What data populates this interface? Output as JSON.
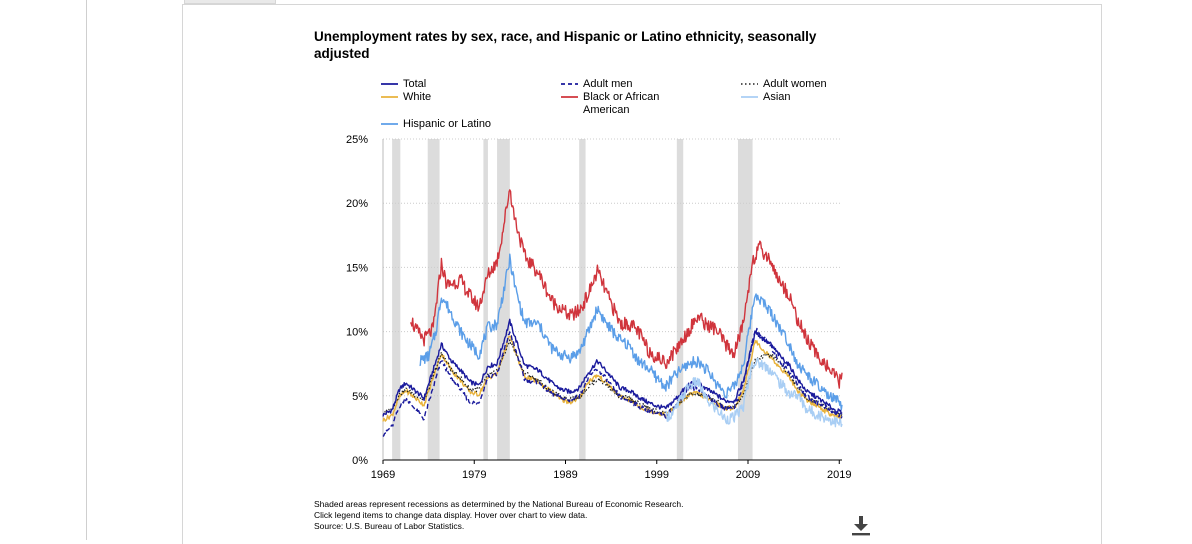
{
  "chart_data": {
    "type": "line",
    "title": "Unemployment rates by sex, race, and Hispanic or Latino ethnicity, seasonally adjusted",
    "xlabel": "",
    "ylabel": "",
    "xlim": [
      1969,
      2019.3
    ],
    "ylim": [
      0,
      25
    ],
    "x_ticks": [
      "1969",
      "1979",
      "1989",
      "1999",
      "2009",
      "2019"
    ],
    "y_ticks": [
      "0%",
      "5%",
      "10%",
      "15%",
      "20%",
      "25%"
    ],
    "grid": "horizontal dotted",
    "legend_position": "top",
    "recessions": [
      [
        1970.0,
        1970.9
      ],
      [
        1973.9,
        1975.2
      ],
      [
        1980.0,
        1980.5
      ],
      [
        1981.5,
        1982.9
      ],
      [
        1990.5,
        1991.2
      ],
      [
        2001.2,
        2001.9
      ],
      [
        2007.9,
        2009.5
      ]
    ],
    "series": [
      {
        "name": "Total",
        "color": "#1a1a9c",
        "dash": "solid",
        "x": [
          1969,
          1970,
          1970.8,
          1971.5,
          1973.5,
          1975.4,
          1976.5,
          1977.5,
          1978.5,
          1979.5,
          1980.5,
          1981.5,
          1982.9,
          1983.5,
          1984.5,
          1986,
          1987.5,
          1988.5,
          1989.5,
          1990.5,
          1991.5,
          1992.5,
          1993.5,
          1995,
          1996,
          1997,
          1998,
          1999,
          2000,
          2001,
          2002.5,
          2003.5,
          2004.5,
          2005.5,
          2006.5,
          2007.5,
          2008.5,
          2009.8,
          2010.5,
          2011.5,
          2012.5,
          2013.5,
          2014.5,
          2015.5,
          2016.5,
          2017.5,
          2018.5,
          2019.3
        ],
        "y": [
          3.5,
          3.9,
          5.5,
          6.0,
          4.8,
          9.0,
          7.7,
          7.0,
          6.1,
          5.8,
          7.3,
          7.5,
          10.8,
          9.5,
          7.4,
          7.0,
          6.0,
          5.5,
          5.3,
          5.6,
          6.8,
          7.7,
          6.9,
          5.6,
          5.4,
          4.9,
          4.5,
          4.2,
          4.0,
          4.7,
          5.9,
          6.0,
          5.5,
          5.1,
          4.6,
          4.6,
          6.2,
          10.0,
          9.5,
          9.0,
          8.1,
          7.4,
          6.2,
          5.3,
          4.9,
          4.4,
          3.9,
          3.7
        ]
      },
      {
        "name": "Adult men",
        "color": "#1a1a9c",
        "dash": "5,3",
        "x": [
          1969,
          1970,
          1970.8,
          1971.5,
          1973.5,
          1975.4,
          1976.5,
          1977.5,
          1978.5,
          1979.5,
          1980.5,
          1981.5,
          1982.9,
          1983.5,
          1984.5,
          1986,
          1987.5,
          1988.5,
          1989.5,
          1990.5,
          1991.5,
          1992.5,
          1993.5,
          1995,
          1996,
          1997,
          1998,
          1999,
          2000,
          2001,
          2002.5,
          2003.5,
          2004.5,
          2005.5,
          2006.5,
          2007.5,
          2008.5,
          2009.8,
          2010.5,
          2011.5,
          2012.5,
          2013.5,
          2014.5,
          2015.5,
          2016.5,
          2017.5,
          2018.5,
          2019.3
        ],
        "y": [
          2.0,
          2.6,
          4.2,
          4.8,
          3.2,
          7.8,
          6.3,
          5.5,
          4.5,
          4.4,
          6.5,
          6.7,
          10.0,
          8.6,
          6.3,
          6.0,
          5.2,
          4.8,
          4.6,
          5.0,
          6.4,
          7.1,
          6.3,
          4.9,
          4.6,
          4.2,
          3.9,
          3.6,
          3.4,
          4.2,
          5.6,
          5.6,
          5.0,
          4.4,
          4.0,
          4.1,
          5.9,
          10.2,
          9.7,
          8.8,
          7.7,
          6.9,
          5.8,
          4.9,
          4.5,
          4.1,
          3.6,
          3.4
        ]
      },
      {
        "name": "Adult women",
        "color": "#222222",
        "dash": "1.5,2",
        "x": [
          1969,
          1970,
          1970.8,
          1971.5,
          1973.5,
          1975.4,
          1976.5,
          1977.5,
          1978.5,
          1979.5,
          1980.5,
          1981.5,
          1982.9,
          1983.5,
          1984.5,
          1986,
          1987.5,
          1988.5,
          1989.5,
          1990.5,
          1991.5,
          1992.5,
          1993.5,
          1995,
          1996,
          1997,
          1998,
          1999,
          2000,
          2001,
          2002.5,
          2003.5,
          2004.5,
          2005.5,
          2006.5,
          2007.5,
          2008.5,
          2009.8,
          2010.5,
          2011.5,
          2012.5,
          2013.5,
          2014.5,
          2015.5,
          2016.5,
          2017.5,
          2018.5,
          2019.3
        ],
        "y": [
          3.6,
          4.0,
          5.1,
          5.5,
          4.6,
          8.3,
          7.0,
          6.4,
          5.5,
          5.5,
          6.6,
          6.9,
          9.3,
          8.4,
          6.8,
          6.2,
          5.3,
          4.9,
          4.8,
          4.9,
          5.7,
          6.3,
          5.9,
          4.9,
          4.8,
          4.4,
          4.1,
          3.8,
          3.6,
          4.1,
          5.1,
          5.1,
          4.9,
          4.6,
          4.1,
          4.1,
          5.1,
          7.8,
          8.1,
          8.2,
          7.6,
          6.6,
          5.6,
          4.8,
          4.5,
          4.1,
          3.7,
          3.6
        ]
      },
      {
        "name": "White",
        "color": "#e8b23b",
        "dash": "solid",
        "x": [
          1969,
          1970,
          1970.8,
          1971.5,
          1973.5,
          1975.4,
          1976.5,
          1977.5,
          1978.5,
          1979.5,
          1980.5,
          1981.5,
          1982.9,
          1983.5,
          1984.5,
          1986,
          1987.5,
          1988.5,
          1989.5,
          1990.5,
          1991.5,
          1992.5,
          1993.5,
          1995,
          1996,
          1997,
          1998,
          1999,
          2000,
          2001,
          2002.5,
          2003.5,
          2004.5,
          2005.5,
          2006.5,
          2007.5,
          2008.5,
          2009.8,
          2010.5,
          2011.5,
          2012.5,
          2013.5,
          2014.5,
          2015.5,
          2016.5,
          2017.5,
          2018.5,
          2019.3
        ],
        "y": [
          3.1,
          3.5,
          4.9,
          5.4,
          4.3,
          8.3,
          7.0,
          6.2,
          5.3,
          5.1,
          6.4,
          6.7,
          9.7,
          8.4,
          6.5,
          6.1,
          5.3,
          4.7,
          4.5,
          4.8,
          6.1,
          6.6,
          6.0,
          4.9,
          4.7,
          4.2,
          3.9,
          3.7,
          3.5,
          4.1,
          5.1,
          5.2,
          4.8,
          4.4,
          4.0,
          4.1,
          5.4,
          9.3,
          8.7,
          8.0,
          7.2,
          6.5,
          5.3,
          4.6,
          4.3,
          3.8,
          3.4,
          3.3
        ]
      },
      {
        "name": "Black or African American",
        "color": "#d0343c",
        "dash": "solid",
        "x": [
          1972,
          1972.5,
          1973.5,
          1974.5,
          1975.4,
          1976,
          1977.5,
          1978.5,
          1979.5,
          1980.5,
          1981.5,
          1982,
          1982.9,
          1983.3,
          1984.5,
          1986,
          1987.5,
          1988.5,
          1989.5,
          1990.5,
          1991.5,
          1992.5,
          1993.5,
          1995,
          1996,
          1997,
          1998,
          1999,
          2000,
          2001,
          2002.5,
          2003.5,
          2004.5,
          2005.5,
          2006.5,
          2007.5,
          2008.5,
          2009.5,
          2010.3,
          2011.5,
          2012.5,
          2013.5,
          2014.5,
          2015.5,
          2016.5,
          2017.5,
          2018.5,
          2019,
          2019.3
        ],
        "y": [
          11.2,
          10.2,
          9.4,
          10.2,
          15.3,
          13.6,
          14.0,
          12.8,
          11.9,
          14.4,
          15.5,
          17.3,
          21.2,
          19.3,
          15.9,
          14.6,
          12.4,
          11.8,
          11.2,
          11.6,
          12.9,
          14.7,
          13.0,
          10.6,
          10.6,
          10.0,
          8.6,
          8.0,
          7.6,
          8.5,
          10.1,
          11.2,
          10.5,
          10.2,
          9.0,
          8.3,
          10.7,
          15.6,
          16.5,
          15.5,
          13.8,
          12.9,
          10.8,
          9.4,
          8.2,
          7.5,
          6.5,
          6.1,
          6.8
        ]
      },
      {
        "name": "Asian",
        "color": "#a9cef4",
        "dash": "solid",
        "x": [
          2000,
          2000.8,
          2001.5,
          2002.5,
          2003.5,
          2004.5,
          2005.5,
          2006.5,
          2007.5,
          2008.5,
          2009.5,
          2010.5,
          2011.5,
          2012.5,
          2013.5,
          2014.5,
          2015.5,
          2016.5,
          2017.5,
          2018.5,
          2019.3
        ],
        "y": [
          3.4,
          3.6,
          4.5,
          5.8,
          6.1,
          4.6,
          4.0,
          3.2,
          3.3,
          4.2,
          7.6,
          7.5,
          7.0,
          6.0,
          5.2,
          5.0,
          3.9,
          3.6,
          3.3,
          3.0,
          2.8
        ]
      },
      {
        "name": "Hispanic or Latino",
        "color": "#5b9ee8",
        "dash": "solid",
        "x": [
          1973,
          1974,
          1974.8,
          1975.4,
          1976.5,
          1977.5,
          1978.5,
          1979.5,
          1980.5,
          1981.5,
          1982.9,
          1983.5,
          1984.5,
          1986,
          1987.5,
          1988.5,
          1989.5,
          1990.5,
          1991.5,
          1992.5,
          1993.5,
          1995,
          1996,
          1997,
          1998,
          1999,
          2000,
          2001,
          2002.5,
          2003.5,
          2004.5,
          2005.5,
          2006.5,
          2007.5,
          2008.5,
          2009.8,
          2010.5,
          2011.5,
          2012.5,
          2013.5,
          2014.5,
          2015.5,
          2016.5,
          2017.5,
          2018.5,
          2019.3
        ],
        "y": [
          7.7,
          8.1,
          10.0,
          12.8,
          11.4,
          10.0,
          9.0,
          8.2,
          10.3,
          10.6,
          15.6,
          13.4,
          10.7,
          10.6,
          8.7,
          8.2,
          8.0,
          8.4,
          10.0,
          11.8,
          10.6,
          9.3,
          8.9,
          7.7,
          7.2,
          6.4,
          5.7,
          6.6,
          7.5,
          7.7,
          7.0,
          6.0,
          5.2,
          5.7,
          7.5,
          13.0,
          12.4,
          11.5,
          10.3,
          9.1,
          7.4,
          6.6,
          5.9,
          5.1,
          4.7,
          4.3
        ]
      }
    ]
  },
  "notes": [
    "Shaded areas represent recessions as determined by the National Bureau of Economic Research.",
    "Click legend items to change data display. Hover over chart to view data.",
    "Source: U.S. Bureau of Labor Statistics."
  ],
  "icons": {
    "download": "download-icon"
  },
  "colors": {
    "recession_shade": "#dcdcdc",
    "grid": "#cccccc",
    "panel_border": "#d6d6d6"
  }
}
